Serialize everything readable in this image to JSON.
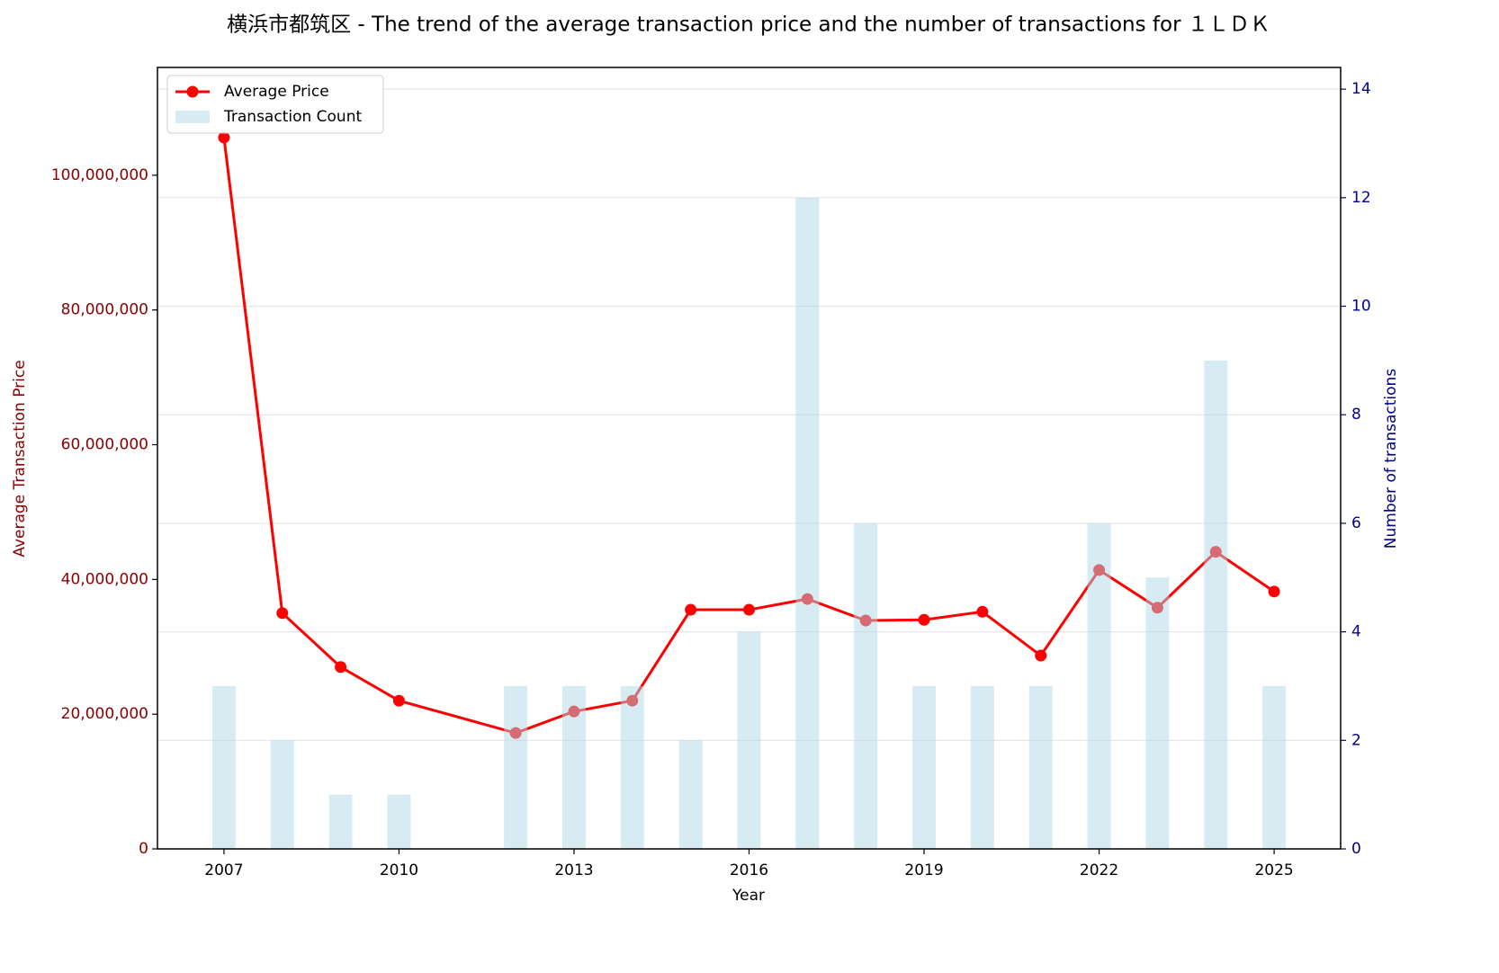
{
  "chart_data": {
    "type": "bar_line",
    "title": "横浜市都筑区 - The trend of the average transaction price and the number of transactions for １ＬＤＫ",
    "x_label": "Year",
    "y_label": "Average Transaction Price",
    "y2_label": "Number of transactions",
    "x": [
      2007,
      2008,
      2009,
      2010,
      2012,
      2013,
      2014,
      2015,
      2016,
      2017,
      2018,
      2019,
      2020,
      2021,
      2022,
      2023,
      2024,
      2025
    ],
    "series": [
      {
        "name": "Average Price",
        "type": "line",
        "color": "#ff0000",
        "values": [
          105600000,
          35000000,
          27000000,
          22000000,
          17200000,
          20400000,
          22000000,
          35500000,
          35500000,
          37100000,
          33900000,
          34000000,
          35200000,
          28700000,
          41400000,
          35800000,
          44100000,
          38200000
        ]
      },
      {
        "name": "Transaction Count",
        "type": "bar",
        "axis": "y2",
        "color": "#add8e6",
        "values": [
          3,
          2,
          1,
          1,
          3,
          3,
          3,
          2,
          4,
          12,
          6,
          3,
          3,
          3,
          6,
          5,
          9,
          3
        ]
      }
    ],
    "xlim": [
      2005.86,
      2026.14
    ],
    "xticks": [
      2007,
      2010,
      2013,
      2016,
      2019,
      2022,
      2025
    ],
    "ylim": [
      0,
      116000000
    ],
    "yticks": [
      0,
      {
        "value": 20000000,
        "label": "20,000,000"
      },
      {
        "value": 40000000,
        "label": "40,000,000"
      },
      {
        "value": 60000000,
        "label": "60,000,000"
      },
      {
        "value": 80000000,
        "label": "80,000,000"
      },
      {
        "value": 100000000,
        "label": "100,000,000"
      }
    ],
    "y2lim": [
      0,
      14.4
    ],
    "y2ticks": [
      0,
      2,
      4,
      6,
      8,
      10,
      12,
      14
    ],
    "grid": "y2",
    "legend": "upper left"
  }
}
